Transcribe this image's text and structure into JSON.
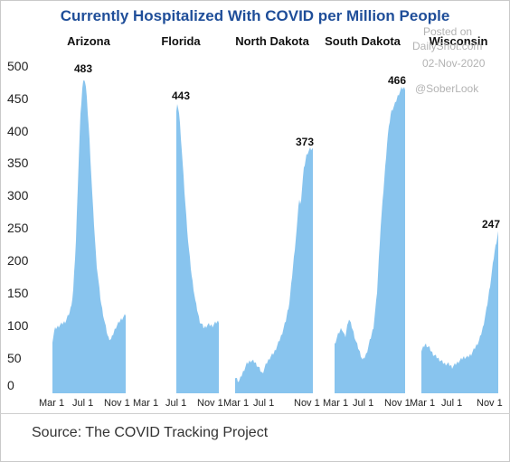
{
  "chart_data": {
    "type": "area",
    "title": "Currently Hospitalized With COVID per Million People",
    "ylim": [
      0,
      500
    ],
    "yticks": [
      0,
      50,
      100,
      150,
      200,
      250,
      300,
      350,
      400,
      450,
      500
    ],
    "xtick_labels": [
      "Mar 1",
      "Jul 1",
      "Nov 1"
    ],
    "bar_color": "#88c4ee",
    "panels": [
      {
        "name": "Arizona",
        "peak_label": "483",
        "data": [
          [
            0,
            80
          ],
          [
            0.03,
            98
          ],
          [
            0.1,
            104
          ],
          [
            0.18,
            110
          ],
          [
            0.24,
            125
          ],
          [
            0.28,
            150
          ],
          [
            0.32,
            230
          ],
          [
            0.35,
            330
          ],
          [
            0.38,
            420
          ],
          [
            0.41,
            470
          ],
          [
            0.435,
            483
          ],
          [
            0.46,
            465
          ],
          [
            0.5,
            400
          ],
          [
            0.55,
            290
          ],
          [
            0.6,
            200
          ],
          [
            0.66,
            140
          ],
          [
            0.71,
            110
          ],
          [
            0.76,
            85
          ],
          [
            0.8,
            82
          ],
          [
            0.86,
            100
          ],
          [
            0.93,
            112
          ],
          [
            1,
            120
          ]
        ]
      },
      {
        "name": "Florida",
        "peak_label": "443",
        "data": [
          [
            0,
            430
          ],
          [
            0.03,
            443
          ],
          [
            0.07,
            425
          ],
          [
            0.12,
            380
          ],
          [
            0.2,
            300
          ],
          [
            0.28,
            230
          ],
          [
            0.36,
            180
          ],
          [
            0.45,
            140
          ],
          [
            0.55,
            110
          ],
          [
            0.65,
            100
          ],
          [
            0.75,
            105
          ],
          [
            0.85,
            103
          ],
          [
            0.93,
            108
          ],
          [
            1,
            110
          ]
        ]
      },
      {
        "name": "North Dakota",
        "peak_label": "373",
        "data": [
          [
            0,
            25
          ],
          [
            0.05,
            18
          ],
          [
            0.1,
            32
          ],
          [
            0.15,
            45
          ],
          [
            0.2,
            50
          ],
          [
            0.25,
            48
          ],
          [
            0.3,
            40
          ],
          [
            0.35,
            30
          ],
          [
            0.4,
            45
          ],
          [
            0.45,
            55
          ],
          [
            0.5,
            62
          ],
          [
            0.55,
            75
          ],
          [
            0.6,
            90
          ],
          [
            0.65,
            110
          ],
          [
            0.7,
            140
          ],
          [
            0.75,
            200
          ],
          [
            0.8,
            260
          ],
          [
            0.82,
            300
          ],
          [
            0.84,
            285
          ],
          [
            0.88,
            340
          ],
          [
            0.92,
            365
          ],
          [
            0.96,
            373
          ],
          [
            1,
            373
          ]
        ]
      },
      {
        "name": "South Dakota",
        "peak_label": "466",
        "data": [
          [
            0,
            75
          ],
          [
            0.05,
            90
          ],
          [
            0.1,
            100
          ],
          [
            0.15,
            85
          ],
          [
            0.2,
            115
          ],
          [
            0.25,
            100
          ],
          [
            0.3,
            80
          ],
          [
            0.35,
            65
          ],
          [
            0.4,
            50
          ],
          [
            0.45,
            60
          ],
          [
            0.5,
            80
          ],
          [
            0.55,
            100
          ],
          [
            0.6,
            150
          ],
          [
            0.65,
            250
          ],
          [
            0.7,
            320
          ],
          [
            0.75,
            390
          ],
          [
            0.8,
            430
          ],
          [
            0.85,
            440
          ],
          [
            0.9,
            455
          ],
          [
            0.95,
            466
          ],
          [
            1,
            466
          ]
        ]
      },
      {
        "name": "Wisconsin",
        "peak_label": "247",
        "data": [
          [
            0,
            65
          ],
          [
            0.05,
            75
          ],
          [
            0.1,
            70
          ],
          [
            0.15,
            60
          ],
          [
            0.2,
            55
          ],
          [
            0.25,
            50
          ],
          [
            0.3,
            45
          ],
          [
            0.35,
            45
          ],
          [
            0.4,
            40
          ],
          [
            0.45,
            45
          ],
          [
            0.5,
            50
          ],
          [
            0.55,
            55
          ],
          [
            0.6,
            55
          ],
          [
            0.65,
            60
          ],
          [
            0.7,
            70
          ],
          [
            0.75,
            80
          ],
          [
            0.8,
            100
          ],
          [
            0.85,
            130
          ],
          [
            0.9,
            170
          ],
          [
            0.95,
            215
          ],
          [
            1,
            247
          ]
        ]
      }
    ]
  },
  "watermark": {
    "line1": "Posted on",
    "line2": "DailyShot.com",
    "line3": "02-Nov-2020",
    "handle": "@SoberLook"
  },
  "source": "Source: The COVID Tracking Project"
}
